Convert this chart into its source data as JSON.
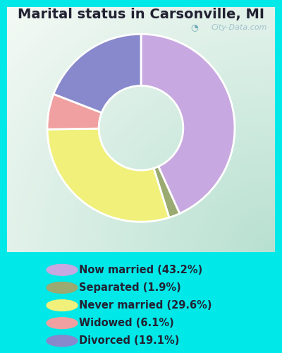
{
  "title": "Marital status in Carsonville, MI",
  "slices": [
    43.2,
    1.9,
    29.6,
    6.1,
    19.1
  ],
  "labels": [
    "Now married (43.2%)",
    "Separated (1.9%)",
    "Never married (29.6%)",
    "Widowed (6.1%)",
    "Divorced (19.1%)"
  ],
  "colors": [
    "#c8a8e0",
    "#9aaa70",
    "#f0f07a",
    "#f0a0a0",
    "#8888cc"
  ],
  "legend_colors": [
    "#c8a8e0",
    "#9aaa70",
    "#f0f07a",
    "#f0a0a0",
    "#8888cc"
  ],
  "start_angle": 90,
  "bg_outer": "#00e8e8",
  "bg_panel_tl": "#b8ddd0",
  "bg_panel_br": "#e8f8ee",
  "title_fontsize": 14,
  "legend_fontsize": 10.5,
  "watermark": "City-Data.com",
  "donut_width": 0.55
}
